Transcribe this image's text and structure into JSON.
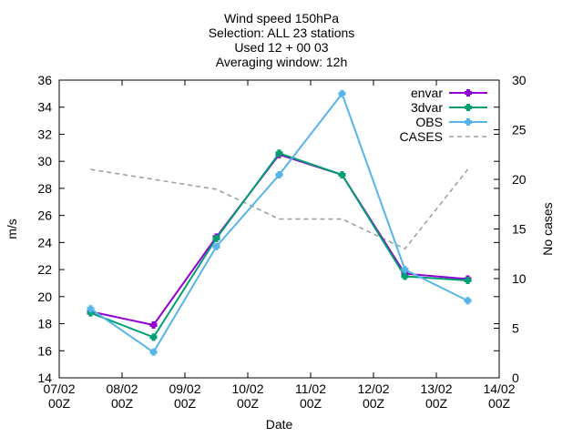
{
  "title_lines": [
    "Wind speed 150hPa",
    "Selection: ALL      23 stations",
    "Used 12 + 00 03",
    "Averaging window: 12h"
  ],
  "chart_data": {
    "type": "line",
    "xlabel": "Date",
    "ylabel": "m/s",
    "y2label": "No cases",
    "x_range": [
      "2023-02-07T00:00",
      "2023-02-14T00:00"
    ],
    "x_ticks": [
      {
        "x": "2023-02-07T00:00",
        "label": [
          "07/02",
          "00Z"
        ]
      },
      {
        "x": "2023-02-08T00:00",
        "label": [
          "08/02",
          "00Z"
        ]
      },
      {
        "x": "2023-02-09T00:00",
        "label": [
          "09/02",
          "00Z"
        ]
      },
      {
        "x": "2023-02-10T00:00",
        "label": [
          "10/02",
          "00Z"
        ]
      },
      {
        "x": "2023-02-11T00:00",
        "label": [
          "11/02",
          "00Z"
        ]
      },
      {
        "x": "2023-02-12T00:00",
        "label": [
          "12/02",
          "00Z"
        ]
      },
      {
        "x": "2023-02-13T00:00",
        "label": [
          "13/02",
          "00Z"
        ]
      },
      {
        "x": "2023-02-14T00:00",
        "label": [
          "14/02",
          "00Z"
        ]
      }
    ],
    "ylim": [
      14,
      36
    ],
    "y_ticks": [
      14,
      16,
      18,
      20,
      22,
      24,
      26,
      28,
      30,
      32,
      34,
      36
    ],
    "y2lim": [
      0,
      30
    ],
    "y2_ticks": [
      0,
      5,
      10,
      15,
      20,
      25,
      30
    ],
    "grid": false,
    "legend_position": "top-right",
    "x": [
      "2023-02-07T12:00",
      "2023-02-08T12:00",
      "2023-02-09T12:00",
      "2023-02-10T12:00",
      "2023-02-11T12:00",
      "2023-02-12T12:00",
      "2023-02-13T12:00"
    ],
    "series": [
      {
        "name": "envar",
        "axis": "y",
        "color": "#9400d3",
        "values": [
          18.9,
          17.9,
          24.4,
          30.5,
          29.0,
          21.7,
          21.3
        ]
      },
      {
        "name": "3dvar",
        "axis": "y",
        "color": "#009e73",
        "values": [
          18.8,
          17.0,
          24.3,
          30.6,
          29.0,
          21.5,
          21.2
        ]
      },
      {
        "name": "OBS",
        "axis": "y",
        "color": "#56b4e9",
        "values": [
          19.1,
          15.9,
          23.7,
          29.0,
          35.0,
          22.0,
          19.7
        ]
      },
      {
        "name": "CASES",
        "axis": "y2",
        "color": "#a0a0a0",
        "dashed": true,
        "values": [
          21,
          20,
          19,
          16,
          16,
          13,
          21
        ]
      }
    ]
  }
}
